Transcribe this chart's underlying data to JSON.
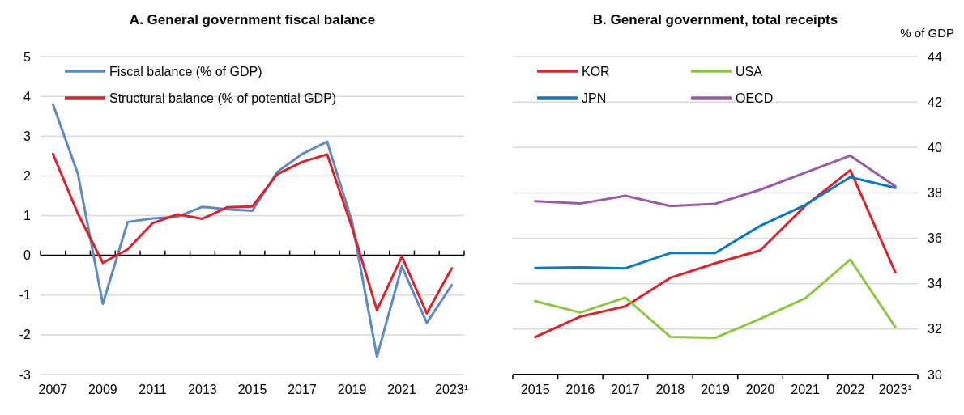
{
  "chart_data": [
    {
      "type": "line",
      "title": "A. General government fiscal balance",
      "categories": [
        "2007",
        null,
        "2009",
        null,
        "2011",
        null,
        "2013",
        null,
        "2015",
        null,
        "2017",
        null,
        "2019",
        null,
        "2021",
        null,
        "2023$^{1}$"
      ],
      "series": [
        {
          "name": "Fiscal balance (% of GDP)",
          "color": "#5b8ac6",
          "values": [
            3.8,
            2.05,
            -1.22,
            0.84,
            0.93,
            0.97,
            1.22,
            1.16,
            1.12,
            2.1,
            2.55,
            2.86,
            0.85,
            -2.55,
            -0.28,
            -1.7,
            -0.75
          ]
        },
        {
          "name": "Structural balance (% of potential GDP)",
          "color": "#e0202a",
          "values": [
            2.55,
            1.05,
            -0.19,
            0.15,
            0.81,
            1.03,
            0.92,
            1.21,
            1.23,
            2.04,
            2.35,
            2.54,
            0.7,
            -1.38,
            -0.03,
            -1.46,
            -0.33
          ]
        }
      ],
      "ylim": [
        -3,
        5
      ],
      "yticks": [
        -3,
        -2,
        -1,
        0,
        1,
        2,
        3,
        4,
        5
      ],
      "grid": "y",
      "legend": "top left",
      "marker": "none",
      "line_style": "solid"
    },
    {
      "type": "line",
      "title": "B. General government, total receipts",
      "y2label": "% of GDP",
      "categories": [
        "2015",
        "2016",
        "2017",
        "2018",
        "2019",
        "2020",
        "2021",
        "2022",
        "2023$^{1}$"
      ],
      "series": [
        {
          "name": "KOR",
          "color": "#e0202a",
          "axis": "y2",
          "values": [
            31.65,
            32.55,
            33.0,
            34.26,
            34.9,
            35.47,
            37.43,
            39.0,
            34.5
          ]
        },
        {
          "name": "USA",
          "color": "#8dc63f",
          "axis": "y2",
          "values": [
            33.23,
            32.73,
            33.39,
            31.66,
            31.62,
            32.45,
            33.36,
            35.06,
            32.09
          ]
        },
        {
          "name": "JPN",
          "color": "#0a7ac2",
          "axis": "y2",
          "values": [
            34.69,
            34.72,
            34.68,
            35.35,
            35.35,
            36.55,
            37.47,
            38.69,
            38.22
          ]
        },
        {
          "name": "OECD",
          "color": "#9b59a6",
          "axis": "y2",
          "values": [
            37.63,
            37.53,
            37.87,
            37.42,
            37.52,
            38.14,
            38.89,
            39.64,
            38.29
          ]
        }
      ],
      "y2lim": [
        30,
        44
      ],
      "y2ticks": [
        30,
        32,
        34,
        36,
        38,
        40,
        42,
        44
      ],
      "grid": "y",
      "legend": "top left",
      "marker": "none",
      "line_style": "solid"
    }
  ]
}
